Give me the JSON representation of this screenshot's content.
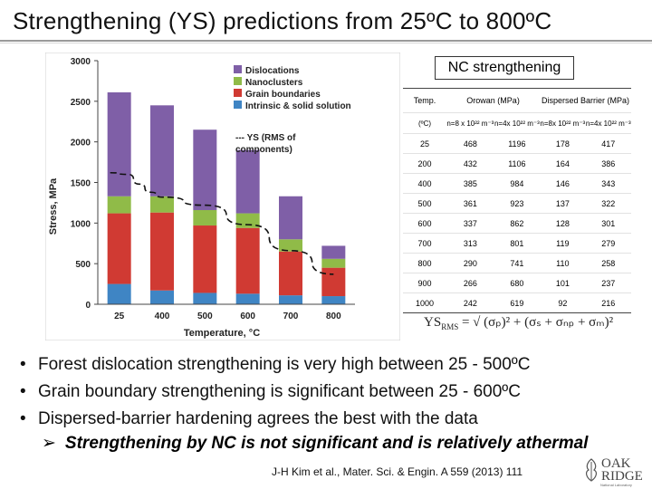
{
  "slide": {
    "title": "Strengthening (YS) predictions from 25ºC to 800ºC",
    "nc_label": "NC strengthening",
    "formula": {
      "lhs": "YS",
      "lhs_sub": "RMS",
      "rhs": "= √ (σₚ)² + (σₛ + σₙₚ + σₘ)²"
    },
    "bullets": [
      "Forest dislocation strengthening is very high between 25 - 500ºC",
      "Grain boundary strengthening is significant between 25 - 600ºC",
      "Dispersed-barrier hardening agrees the best with the data"
    ],
    "sub_bullet": "Strengthening by NC is not significant and is relatively athermal",
    "reference": "J-H Kim et al., Mater. Sci. & Engin. A 559 (2013) 111",
    "logo": {
      "line1": "OAK",
      "line2": "RIDGE",
      "line3": "National Laboratory"
    }
  },
  "table": {
    "header1": [
      "Temp.",
      "Orowan (MPa)",
      "Dispersed Barrier (MPa)"
    ],
    "header2": [
      "(ºC)",
      "n=8 x 10²² m⁻³",
      "n=4x 10²² m⁻³",
      "n=8x 10²² m⁻³",
      "n=4x 10²² m⁻³"
    ],
    "rows": [
      [
        "25",
        "468",
        "1196",
        "178",
        "417"
      ],
      [
        "200",
        "432",
        "1106",
        "164",
        "386"
      ],
      [
        "400",
        "385",
        "984",
        "146",
        "343"
      ],
      [
        "500",
        "361",
        "923",
        "137",
        "322"
      ],
      [
        "600",
        "337",
        "862",
        "128",
        "301"
      ],
      [
        "700",
        "313",
        "801",
        "119",
        "279"
      ],
      [
        "800",
        "290",
        "741",
        "110",
        "258"
      ],
      [
        "900",
        "266",
        "680",
        "101",
        "237"
      ],
      [
        "1000",
        "242",
        "619",
        "92",
        "216"
      ]
    ]
  },
  "chart_data": {
    "type": "bar",
    "stacked": true,
    "categories": [
      "25",
      "400",
      "500",
      "600",
      "700",
      "800"
    ],
    "xlabel": "Temperature, °C",
    "ylabel": "Stress, MPa",
    "ylim": [
      0,
      3000
    ],
    "yticks": [
      "0",
      "500",
      "1000",
      "1500",
      "2000",
      "2500",
      "3000"
    ],
    "series": [
      {
        "name": "Intrinsic & solid solution",
        "color": "#3f85c4",
        "values": [
          250,
          170,
          140,
          130,
          110,
          100
        ]
      },
      {
        "name": "Grain boundaries",
        "color": "#d03a33",
        "values": [
          870,
          960,
          830,
          810,
          540,
          350
        ]
      },
      {
        "name": "Nanoclusters",
        "color": "#90bb48",
        "values": [
          210,
          200,
          190,
          180,
          150,
          110
        ]
      },
      {
        "name": "Dislocations",
        "color": "#7f5fa7",
        "values": [
          1280,
          1120,
          990,
          780,
          530,
          160
        ]
      }
    ],
    "line": {
      "name": "--- YS (RMS of components)",
      "x": [
        25,
        100,
        200,
        300,
        400,
        500,
        600,
        700,
        800
      ],
      "values": [
        1620,
        1600,
        1480,
        1380,
        1320,
        1220,
        980,
        660,
        370
      ]
    },
    "legend": [
      "Dislocations",
      "Nanoclusters",
      "Grain boundaries",
      "Intrinsic & solid solution",
      "--- YS (RMS of",
      "components)"
    ]
  }
}
